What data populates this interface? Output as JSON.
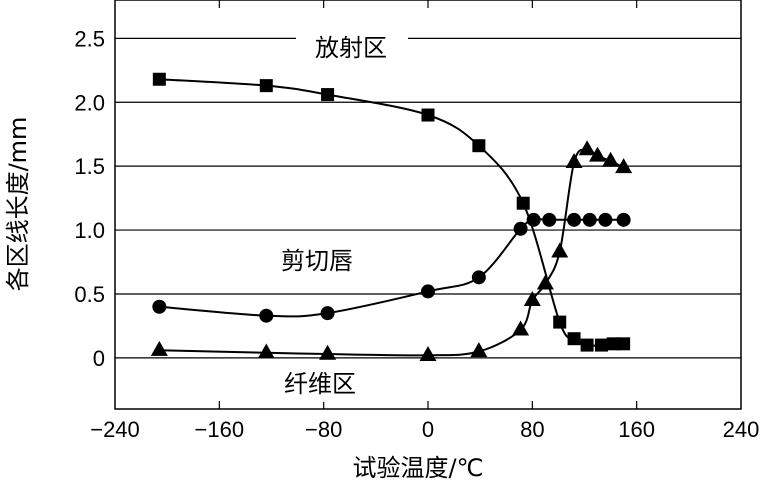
{
  "chart_data": {
    "type": "line",
    "xlabel": "试验温度/℃",
    "ylabel": "各区线长度/mm",
    "xlim": [
      -240,
      240
    ],
    "ylim": [
      -0.4,
      2.8
    ],
    "x_ticks": [
      -240,
      -160,
      -80,
      0,
      80,
      160,
      240
    ],
    "x_tick_labels": [
      "−240",
      "−160",
      "−80",
      "0",
      "80",
      "160",
      "240"
    ],
    "y_ticks": [
      0,
      0.5,
      1.0,
      1.5,
      2.0,
      2.5
    ],
    "y_tick_labels": [
      "0",
      "0.5",
      "1.0",
      "1.5",
      "2.0",
      "2.5"
    ],
    "grid": "horizontal",
    "series": [
      {
        "name": "放射区",
        "marker": "square",
        "x": [
          -206,
          -124,
          -77,
          0,
          39,
          73,
          101,
          112,
          122,
          133,
          142,
          150
        ],
        "y": [
          2.18,
          2.13,
          2.06,
          1.9,
          1.66,
          1.21,
          0.28,
          0.15,
          0.1,
          0.1,
          0.11,
          0.11
        ]
      },
      {
        "name": "剪切唇",
        "marker": "circle",
        "x": [
          -206,
          -124,
          -77,
          0,
          39,
          71,
          81,
          93,
          112,
          124,
          136,
          150
        ],
        "y": [
          0.4,
          0.33,
          0.35,
          0.52,
          0.63,
          1.01,
          1.08,
          1.08,
          1.08,
          1.08,
          1.08,
          1.08
        ]
      },
      {
        "name": "纤维区",
        "marker": "triangle",
        "x": [
          -206,
          -124,
          -77,
          0,
          39,
          71,
          80,
          90,
          101,
          112,
          122,
          130,
          140,
          150
        ],
        "y": [
          0.06,
          0.04,
          0.03,
          0.02,
          0.05,
          0.22,
          0.45,
          0.58,
          0.83,
          1.53,
          1.63,
          1.58,
          1.54,
          1.49
        ]
      }
    ]
  }
}
